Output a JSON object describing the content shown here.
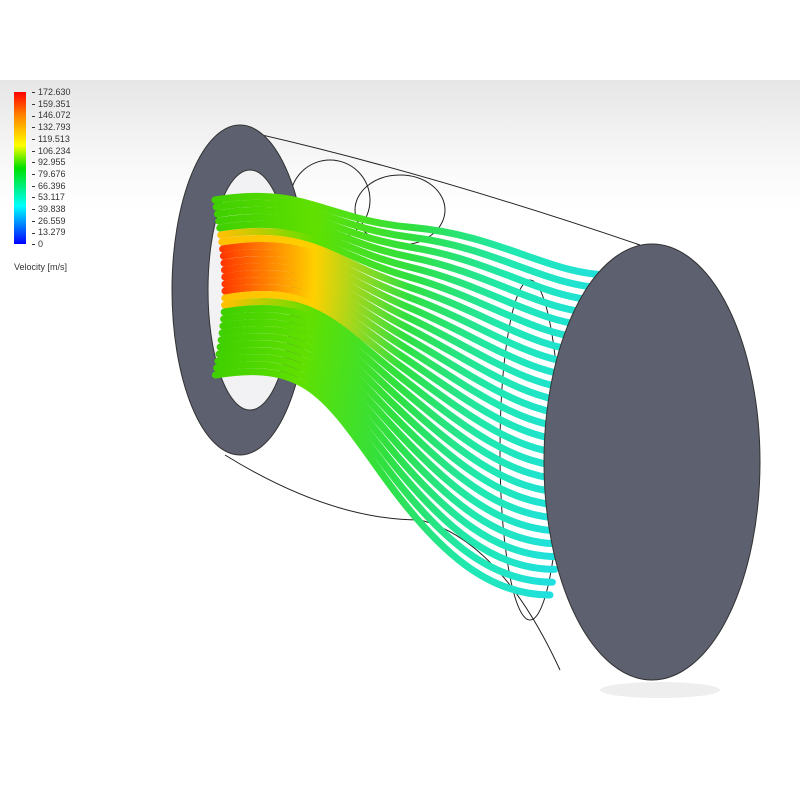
{
  "legend": {
    "title": "Velocity [m/s]",
    "ticks": [
      "172.630",
      "159.351",
      "146.072",
      "132.793",
      "119.513",
      "106.234",
      "92.955",
      "79.676",
      "66.396",
      "53.117",
      "39.838",
      "26.559",
      "13.279",
      "0"
    ],
    "colors": [
      "#ff0000",
      "#ff8000",
      "#ffff00",
      "#00e000",
      "#00ffff",
      "#0000ff"
    ]
  },
  "colors": {
    "disc": "#5c606f",
    "background": "#ffffff"
  }
}
